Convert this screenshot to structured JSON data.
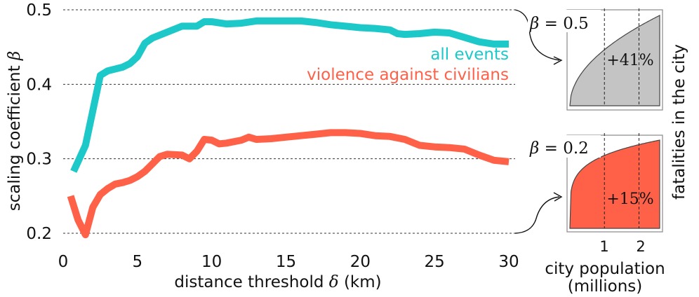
{
  "chart_data": [
    {
      "type": "line",
      "xlabel": "distance threshold",
      "xlabel_symbol": "δ",
      "xlabel_unit": "(km)",
      "ylabel": "scaling coefficient",
      "ylabel_symbol": "β",
      "xlim": [
        0,
        30
      ],
      "ylim": [
        0.2,
        0.5
      ],
      "xticks": [
        "0",
        "5",
        "10",
        "15",
        "20",
        "25",
        "30"
      ],
      "yticks": [
        "0.2",
        "0.3",
        "0.4",
        "0.5"
      ],
      "legend": [
        "all events",
        "violence against civilians"
      ],
      "grid": "horizontal dashed at 0.2, 0.3, 0.4, 0.5",
      "series": [
        {
          "name": "all events",
          "color": "#1cc8c8",
          "x": [
            0.7,
            1.5,
            2.5,
            3.0,
            4.0,
            4.5,
            5.0,
            5.5,
            6.0,
            7.0,
            8.0,
            9.0,
            9.5,
            10.0,
            11.0,
            12.0,
            13.0,
            14.0,
            15.0,
            16.0,
            17.0,
            18.0,
            19.0,
            20.0,
            21.0,
            22.0,
            22.5,
            23.0,
            24.0,
            25.0,
            26.0,
            27.0,
            28.0,
            29.0,
            30.0
          ],
          "values": [
            0.283,
            0.318,
            0.412,
            0.418,
            0.423,
            0.428,
            0.437,
            0.455,
            0.462,
            0.47,
            0.478,
            0.478,
            0.484,
            0.484,
            0.481,
            0.482,
            0.485,
            0.485,
            0.485,
            0.485,
            0.483,
            0.48,
            0.478,
            0.476,
            0.475,
            0.473,
            0.468,
            0.467,
            0.468,
            0.47,
            0.469,
            0.463,
            0.457,
            0.454,
            0.454
          ]
        },
        {
          "name": "violence against civilians",
          "color": "#ff6148",
          "x": [
            0.5,
            1.0,
            1.5,
            2.0,
            2.5,
            3.0,
            3.5,
            4.0,
            4.5,
            5.0,
            5.5,
            6.0,
            6.5,
            7.0,
            8.0,
            8.5,
            9.0,
            9.5,
            10.0,
            10.5,
            11.0,
            12.0,
            12.5,
            13.0,
            14.0,
            15.0,
            16.0,
            17.0,
            18.0,
            19.0,
            20.0,
            21.0,
            22.0,
            23.0,
            24.0,
            25.0,
            26.0,
            27.0,
            28.0,
            29.0,
            30.0
          ],
          "values": [
            0.25,
            0.218,
            0.198,
            0.235,
            0.252,
            0.26,
            0.266,
            0.268,
            0.271,
            0.276,
            0.283,
            0.293,
            0.303,
            0.306,
            0.305,
            0.3,
            0.31,
            0.326,
            0.325,
            0.32,
            0.321,
            0.325,
            0.329,
            0.326,
            0.327,
            0.329,
            0.331,
            0.333,
            0.335,
            0.335,
            0.334,
            0.331,
            0.33,
            0.326,
            0.318,
            0.316,
            0.315,
            0.313,
            0.305,
            0.298,
            0.296
          ]
        }
      ]
    },
    {
      "type": "area",
      "title_symbol": "β",
      "title": "= 0.5",
      "beta": 0.5,
      "annotation": "+41%",
      "color": "#c4c4c4",
      "xlim": [
        0,
        2.6
      ],
      "xticks": [
        "1",
        "2"
      ],
      "guide_lines_x": [
        1,
        2
      ]
    },
    {
      "type": "area",
      "title_symbol": "β",
      "title": "= 0.2",
      "beta": 0.2,
      "annotation": "+15%",
      "color": "#ff6148",
      "xlim": [
        0,
        2.6
      ],
      "xticks": [
        "1",
        "2"
      ],
      "guide_lines_x": [
        1,
        2
      ],
      "xlabel": "city population",
      "xlabel_unit": "(millions)",
      "ylabel": "fatalities in the city"
    }
  ]
}
